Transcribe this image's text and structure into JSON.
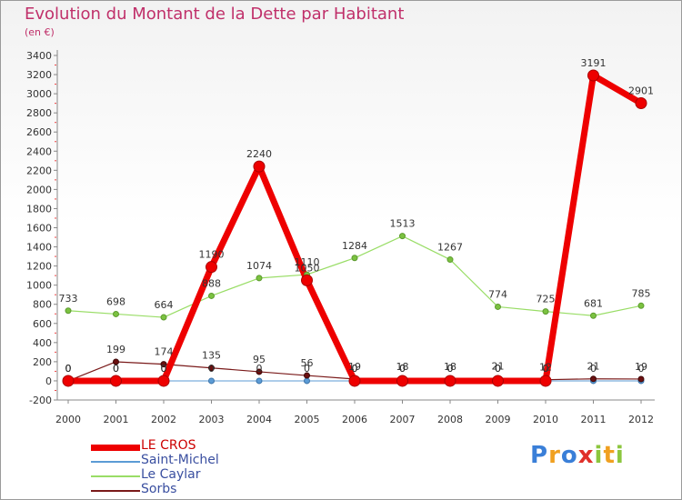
{
  "title": "Evolution du Montant de la Dette par Habitant",
  "subtitle": "(en €)",
  "logo": {
    "text": "Proxiti",
    "letters": [
      {
        "ch": "P",
        "color": "#3a7fd8"
      },
      {
        "ch": "r",
        "color": "#f0a020"
      },
      {
        "ch": "o",
        "color": "#3a7fd8"
      },
      {
        "ch": "x",
        "color": "#e0302a"
      },
      {
        "ch": "i",
        "color": "#8cc63e"
      },
      {
        "ch": "t",
        "color": "#f0a020"
      },
      {
        "ch": "i",
        "color": "#8cc63e"
      }
    ]
  },
  "chart_data": {
    "type": "line",
    "title": "Evolution du Montant de la Dette par Habitant",
    "subtitle": "(en €)",
    "categories": [
      "2000",
      "2001",
      "2002",
      "2003",
      "2004",
      "2005",
      "2006",
      "2007",
      "2008",
      "2009",
      "2010",
      "2011",
      "2012"
    ],
    "ylim": [
      -200,
      3400
    ],
    "yticks": [
      -200,
      0,
      200,
      400,
      600,
      800,
      1000,
      1200,
      1400,
      1600,
      1800,
      2000,
      2200,
      2400,
      2600,
      2800,
      3000,
      3200,
      3400
    ],
    "grid": false,
    "legend_position": "bottom-left",
    "series": [
      {
        "name": "LE CROS",
        "color": "#ee0000",
        "values": [
          0,
          0,
          0,
          1190,
          2240,
          1050,
          0,
          0,
          0,
          0,
          0,
          3191,
          2901
        ],
        "labels": [
          "0",
          "0",
          "0",
          "1190",
          "2240",
          "1050",
          "0",
          "0",
          "0",
          "0",
          "0",
          "3191",
          "2901"
        ]
      },
      {
        "name": "Saint-Michel",
        "color": "#5b9bd5",
        "values": [
          0,
          0,
          0,
          0,
          0,
          0,
          0,
          0,
          0,
          0,
          0,
          0,
          0
        ],
        "labels": [
          "0",
          "0",
          "0",
          "0",
          "0",
          "0",
          "0",
          "0",
          "0",
          "0",
          "0",
          "0",
          "0"
        ]
      },
      {
        "name": "Le Caylar",
        "color": "#99dd66",
        "values": [
          733,
          698,
          664,
          888,
          1074,
          1110,
          1284,
          1513,
          1267,
          774,
          725,
          681,
          785
        ],
        "labels": [
          "733",
          "698",
          "664",
          "888",
          "1074",
          "1110",
          "1284",
          "1513",
          "1267",
          "774",
          "725",
          "681",
          "785"
        ]
      },
      {
        "name": "Sorbs",
        "color": "#7a1a1a",
        "values": [
          0,
          199,
          174,
          135,
          95,
          56,
          19,
          18,
          18,
          21,
          12,
          21,
          19
        ],
        "labels": [
          "0",
          "199",
          "174",
          "135",
          "95",
          "56",
          "19",
          "18",
          "18",
          "21",
          "12",
          "21",
          "19"
        ]
      }
    ]
  }
}
